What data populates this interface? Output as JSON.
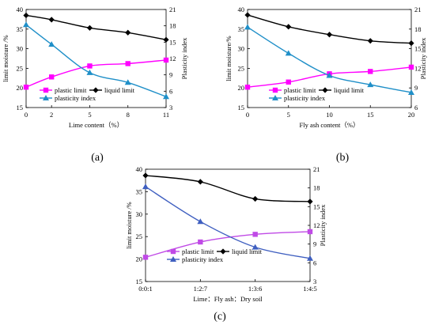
{
  "chart_data": [
    {
      "type": "line",
      "panel_label": "(a)",
      "x_mode": "value",
      "x": [
        0,
        2,
        5,
        8,
        11
      ],
      "xticks": [
        "0",
        "2",
        "5",
        "8",
        "11"
      ],
      "xlim": [
        0,
        11
      ],
      "xlabel": "Lime content（%）",
      "ylabel": "limit moisture /%",
      "ylabel_right": "Plasticity index",
      "ylim": [
        15,
        40
      ],
      "yticks": [
        15,
        20,
        25,
        30,
        35,
        40
      ],
      "ylim_right": [
        3,
        21
      ],
      "yticks_right": [
        3,
        6,
        9,
        12,
        15,
        18,
        21
      ],
      "series": [
        {
          "name": "plastic limit",
          "axis": "left",
          "color": "#ff00ff",
          "marker": "square",
          "values": [
            20.2,
            22.8,
            25.6,
            26.2,
            27.1
          ]
        },
        {
          "name": "liquid limit",
          "axis": "left",
          "color": "#000000",
          "marker": "diamond",
          "values": [
            38.5,
            37.4,
            35.3,
            34.1,
            32.3
          ]
        },
        {
          "name": "plasticity index",
          "axis": "right",
          "color": "#1f8fc8",
          "marker": "triangle",
          "values": [
            18.2,
            14.6,
            9.4,
            7.6,
            5.0
          ]
        }
      ]
    },
    {
      "type": "line",
      "panel_label": "(b)",
      "x_mode": "value",
      "x": [
        0,
        5,
        10,
        15,
        20
      ],
      "xticks": [
        "0",
        "5",
        "10",
        "15",
        "20"
      ],
      "xlim": [
        0,
        20
      ],
      "xlabel": "Fly ash content（%）",
      "ylabel": "limit moisture/%",
      "ylabel_right": "Plasticity index",
      "ylim": [
        15,
        40
      ],
      "yticks": [
        15,
        20,
        25,
        30,
        35,
        40
      ],
      "ylim_right": [
        6,
        21
      ],
      "yticks_right": [
        6,
        9,
        12,
        15,
        18,
        21
      ],
      "series": [
        {
          "name": "plastic limit",
          "axis": "left",
          "color": "#ff00ff",
          "marker": "square",
          "values": [
            20.2,
            21.5,
            23.6,
            24.2,
            25.3
          ]
        },
        {
          "name": "liquid limit",
          "axis": "left",
          "color": "#000000",
          "marker": "diamond",
          "values": [
            38.6,
            35.6,
            33.6,
            32.0,
            31.4
          ]
        },
        {
          "name": "plasticity index",
          "axis": "right",
          "color": "#1f8fc8",
          "marker": "triangle",
          "values": [
            18.3,
            14.3,
            10.9,
            9.5,
            8.3
          ]
        }
      ]
    },
    {
      "type": "line",
      "panel_label": "(c)",
      "x_mode": "category",
      "categories": [
        "0:0:1",
        "1:2:7",
        "1:3:6",
        "1:4:5"
      ],
      "xlabel": "Lime：Fly ash：Dry soil",
      "ylabel": "limit moisture /%",
      "ylabel_right": "Plasticity index",
      "ylim": [
        15,
        40
      ],
      "yticks": [
        15,
        20,
        25,
        30,
        35,
        40
      ],
      "ylim_right": [
        3,
        21
      ],
      "yticks_right": [
        3,
        6,
        9,
        12,
        15,
        18,
        21
      ],
      "series": [
        {
          "name": "plastic limit",
          "axis": "left",
          "color": "#c04ae6",
          "marker": "square",
          "values": [
            20.4,
            23.8,
            25.5,
            26.1
          ]
        },
        {
          "name": "liquid limit",
          "axis": "left",
          "color": "#000000",
          "marker": "diamond",
          "values": [
            38.6,
            37.2,
            33.4,
            32.8
          ]
        },
        {
          "name": "plasticity index",
          "axis": "right",
          "color": "#3f5fc0",
          "marker": "triangle",
          "values": [
            18.2,
            12.6,
            8.5,
            6.7
          ]
        }
      ]
    }
  ]
}
